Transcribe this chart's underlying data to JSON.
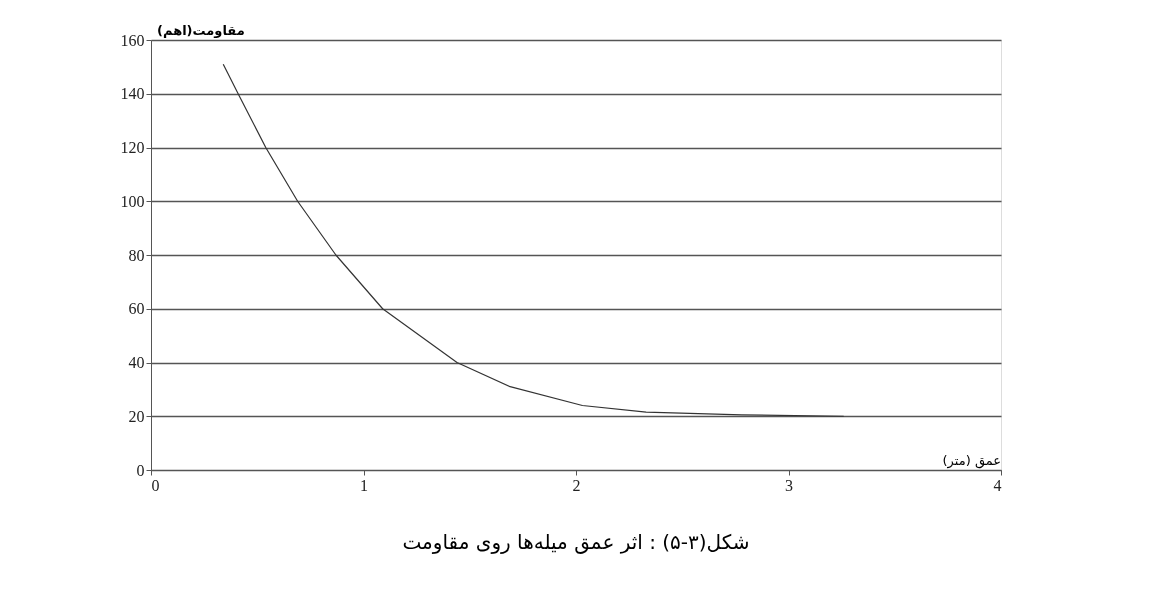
{
  "chart_data": {
    "type": "line",
    "title": "شکل(۳-۵) : اثر عمق میله‌ها روی مقاومت",
    "xlabel": "عمق (متر)",
    "ylabel": "مقاومت(اهم)",
    "x": [
      0.34,
      0.41,
      0.54,
      0.69,
      0.87,
      1.09,
      1.44,
      1.69,
      2.03,
      2.33,
      2.78,
      3.26
    ],
    "series": [
      {
        "color": "#333333",
        "values": [
          151,
          140,
          120,
          100,
          80,
          60,
          40,
          31,
          24,
          21.5,
          20.5,
          20
        ]
      }
    ],
    "xlim": [
      0,
      4
    ],
    "xticks": [
      0,
      1,
      2,
      3,
      4
    ],
    "ylim": [
      0,
      160
    ],
    "yticks": [
      0,
      20,
      40,
      60,
      80,
      100,
      120,
      140,
      160
    ],
    "grid": "y",
    "marker": "none",
    "line_style": "solid",
    "legend": false
  }
}
